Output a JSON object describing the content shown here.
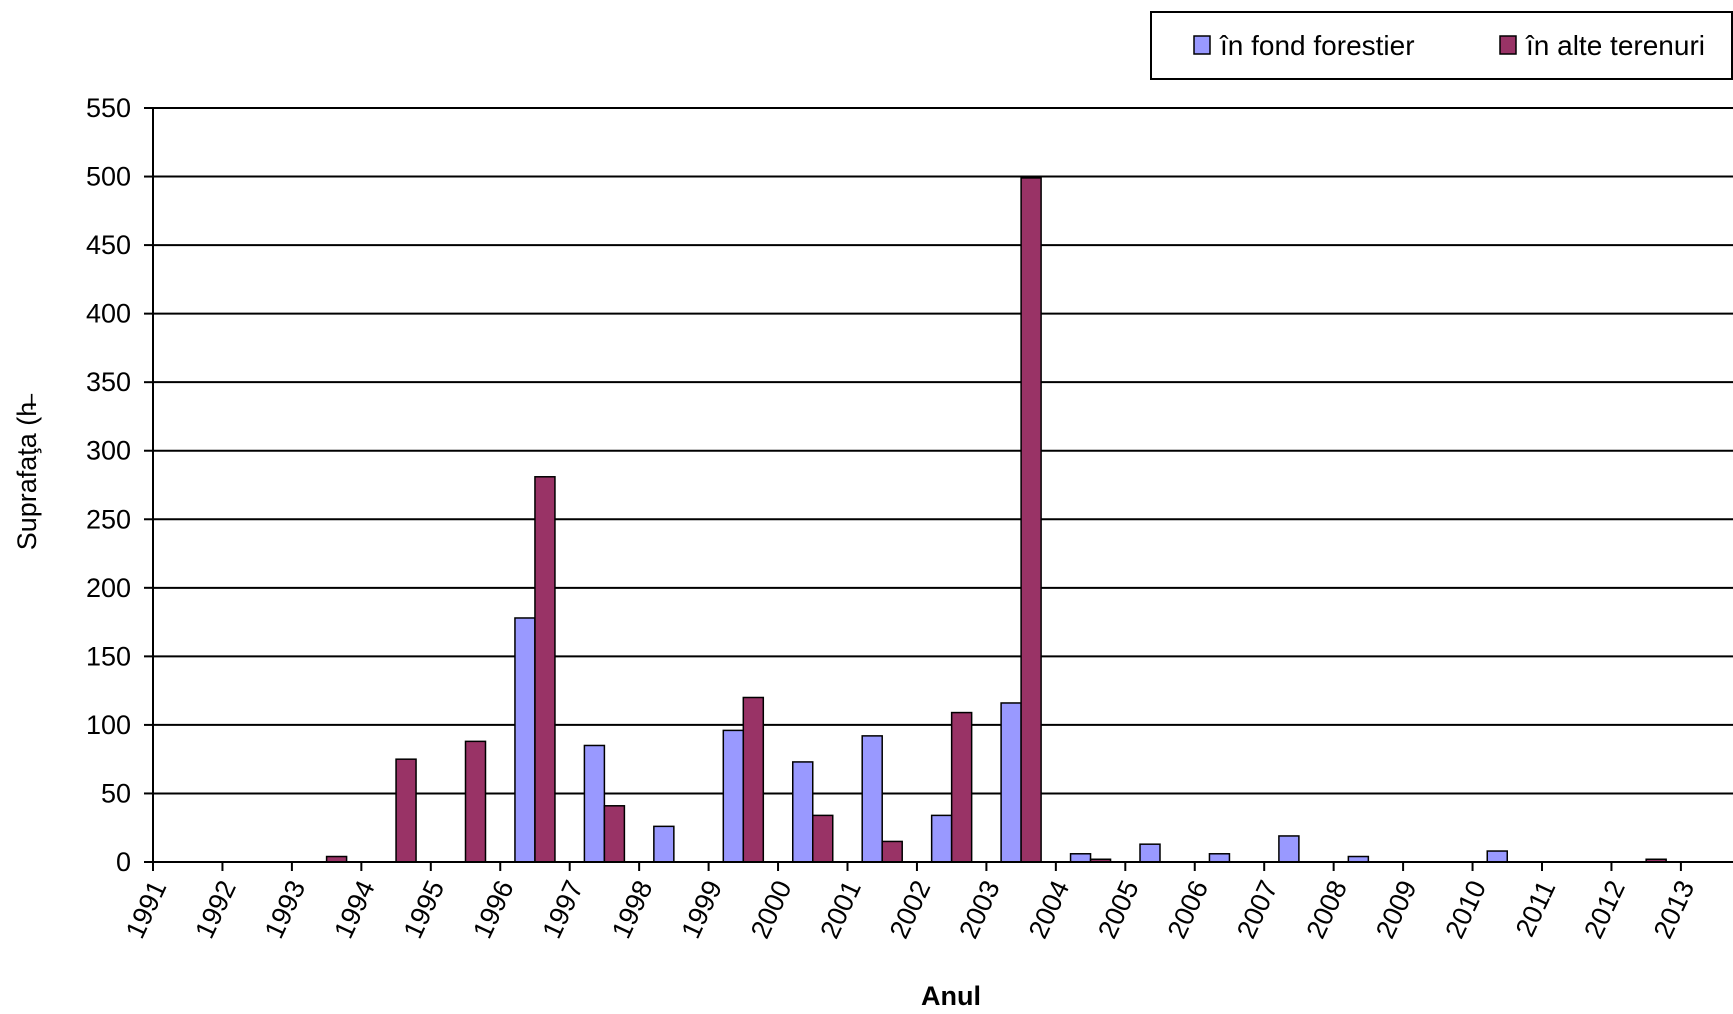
{
  "chart_data": {
    "type": "bar",
    "xlabel": "Anul",
    "ylabel": "Suprafaţa (h̶",
    "ylim": [
      0,
      550
    ],
    "yticks": [
      0,
      50,
      100,
      150,
      200,
      250,
      300,
      350,
      400,
      450,
      500,
      550
    ],
    "grid": true,
    "legend_position": "top-right",
    "categories": [
      "1991",
      "1992",
      "1993",
      "1994",
      "1995",
      "1996",
      "1997",
      "1998",
      "1999",
      "2000",
      "2001",
      "2002",
      "2003",
      "2004",
      "2005",
      "2006",
      "2007",
      "2008",
      "2009",
      "2010",
      "2011",
      "2012",
      "2013"
    ],
    "series": [
      {
        "name": "în fond forestier",
        "color": "#9999ff",
        "values": [
          0,
          0,
          0,
          0,
          0,
          178,
          85,
          26,
          96,
          73,
          92,
          34,
          116,
          6,
          13,
          6,
          19,
          4,
          0,
          8,
          0,
          0,
          null
        ]
      },
      {
        "name": "în alte terenuri",
        "color": "#993366",
        "values": [
          0,
          0,
          4,
          75,
          88,
          281,
          41,
          0,
          120,
          34,
          15,
          109,
          499,
          2,
          0,
          0,
          0,
          0,
          0,
          0,
          0,
          2,
          null
        ]
      }
    ]
  }
}
